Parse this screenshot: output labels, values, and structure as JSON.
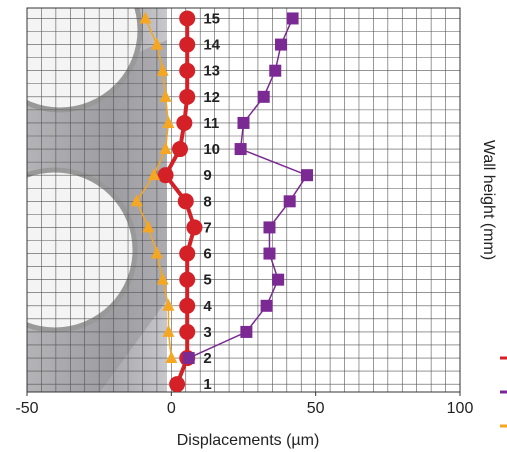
{
  "chart_data": {
    "type": "line",
    "orientation": "horizontal",
    "x_label": "Displacements (µm)",
    "y_label": "Wall height (mm)",
    "categories": [
      1,
      2,
      3,
      4,
      5,
      6,
      7,
      8,
      9,
      10,
      11,
      12,
      13,
      14,
      15
    ],
    "series": [
      {
        "color": "#d42027",
        "marker": "circle",
        "values": [
          2,
          5.5,
          5.5,
          5.5,
          5.5,
          5.5,
          8,
          5,
          -2,
          3,
          4.5,
          5.5,
          5.5,
          5.5,
          5.5
        ]
      },
      {
        "color": "#7b2a93",
        "marker": "square",
        "values": [
          null,
          6,
          26,
          33,
          37,
          34,
          34,
          41,
          47,
          24,
          25,
          32,
          36,
          38,
          42
        ]
      },
      {
        "color": "#f5a623",
        "marker": "triangle",
        "values": [
          null,
          0,
          -1,
          -1,
          -3,
          -5,
          -8,
          -12,
          -6,
          -2,
          -1,
          -2,
          -3,
          -5,
          -9
        ]
      }
    ],
    "xlim": [
      -50,
      100
    ],
    "xticks": [
      -50,
      0,
      50,
      100
    ],
    "ylim": [
      0.7,
      15.4
    ],
    "grid": true
  }
}
